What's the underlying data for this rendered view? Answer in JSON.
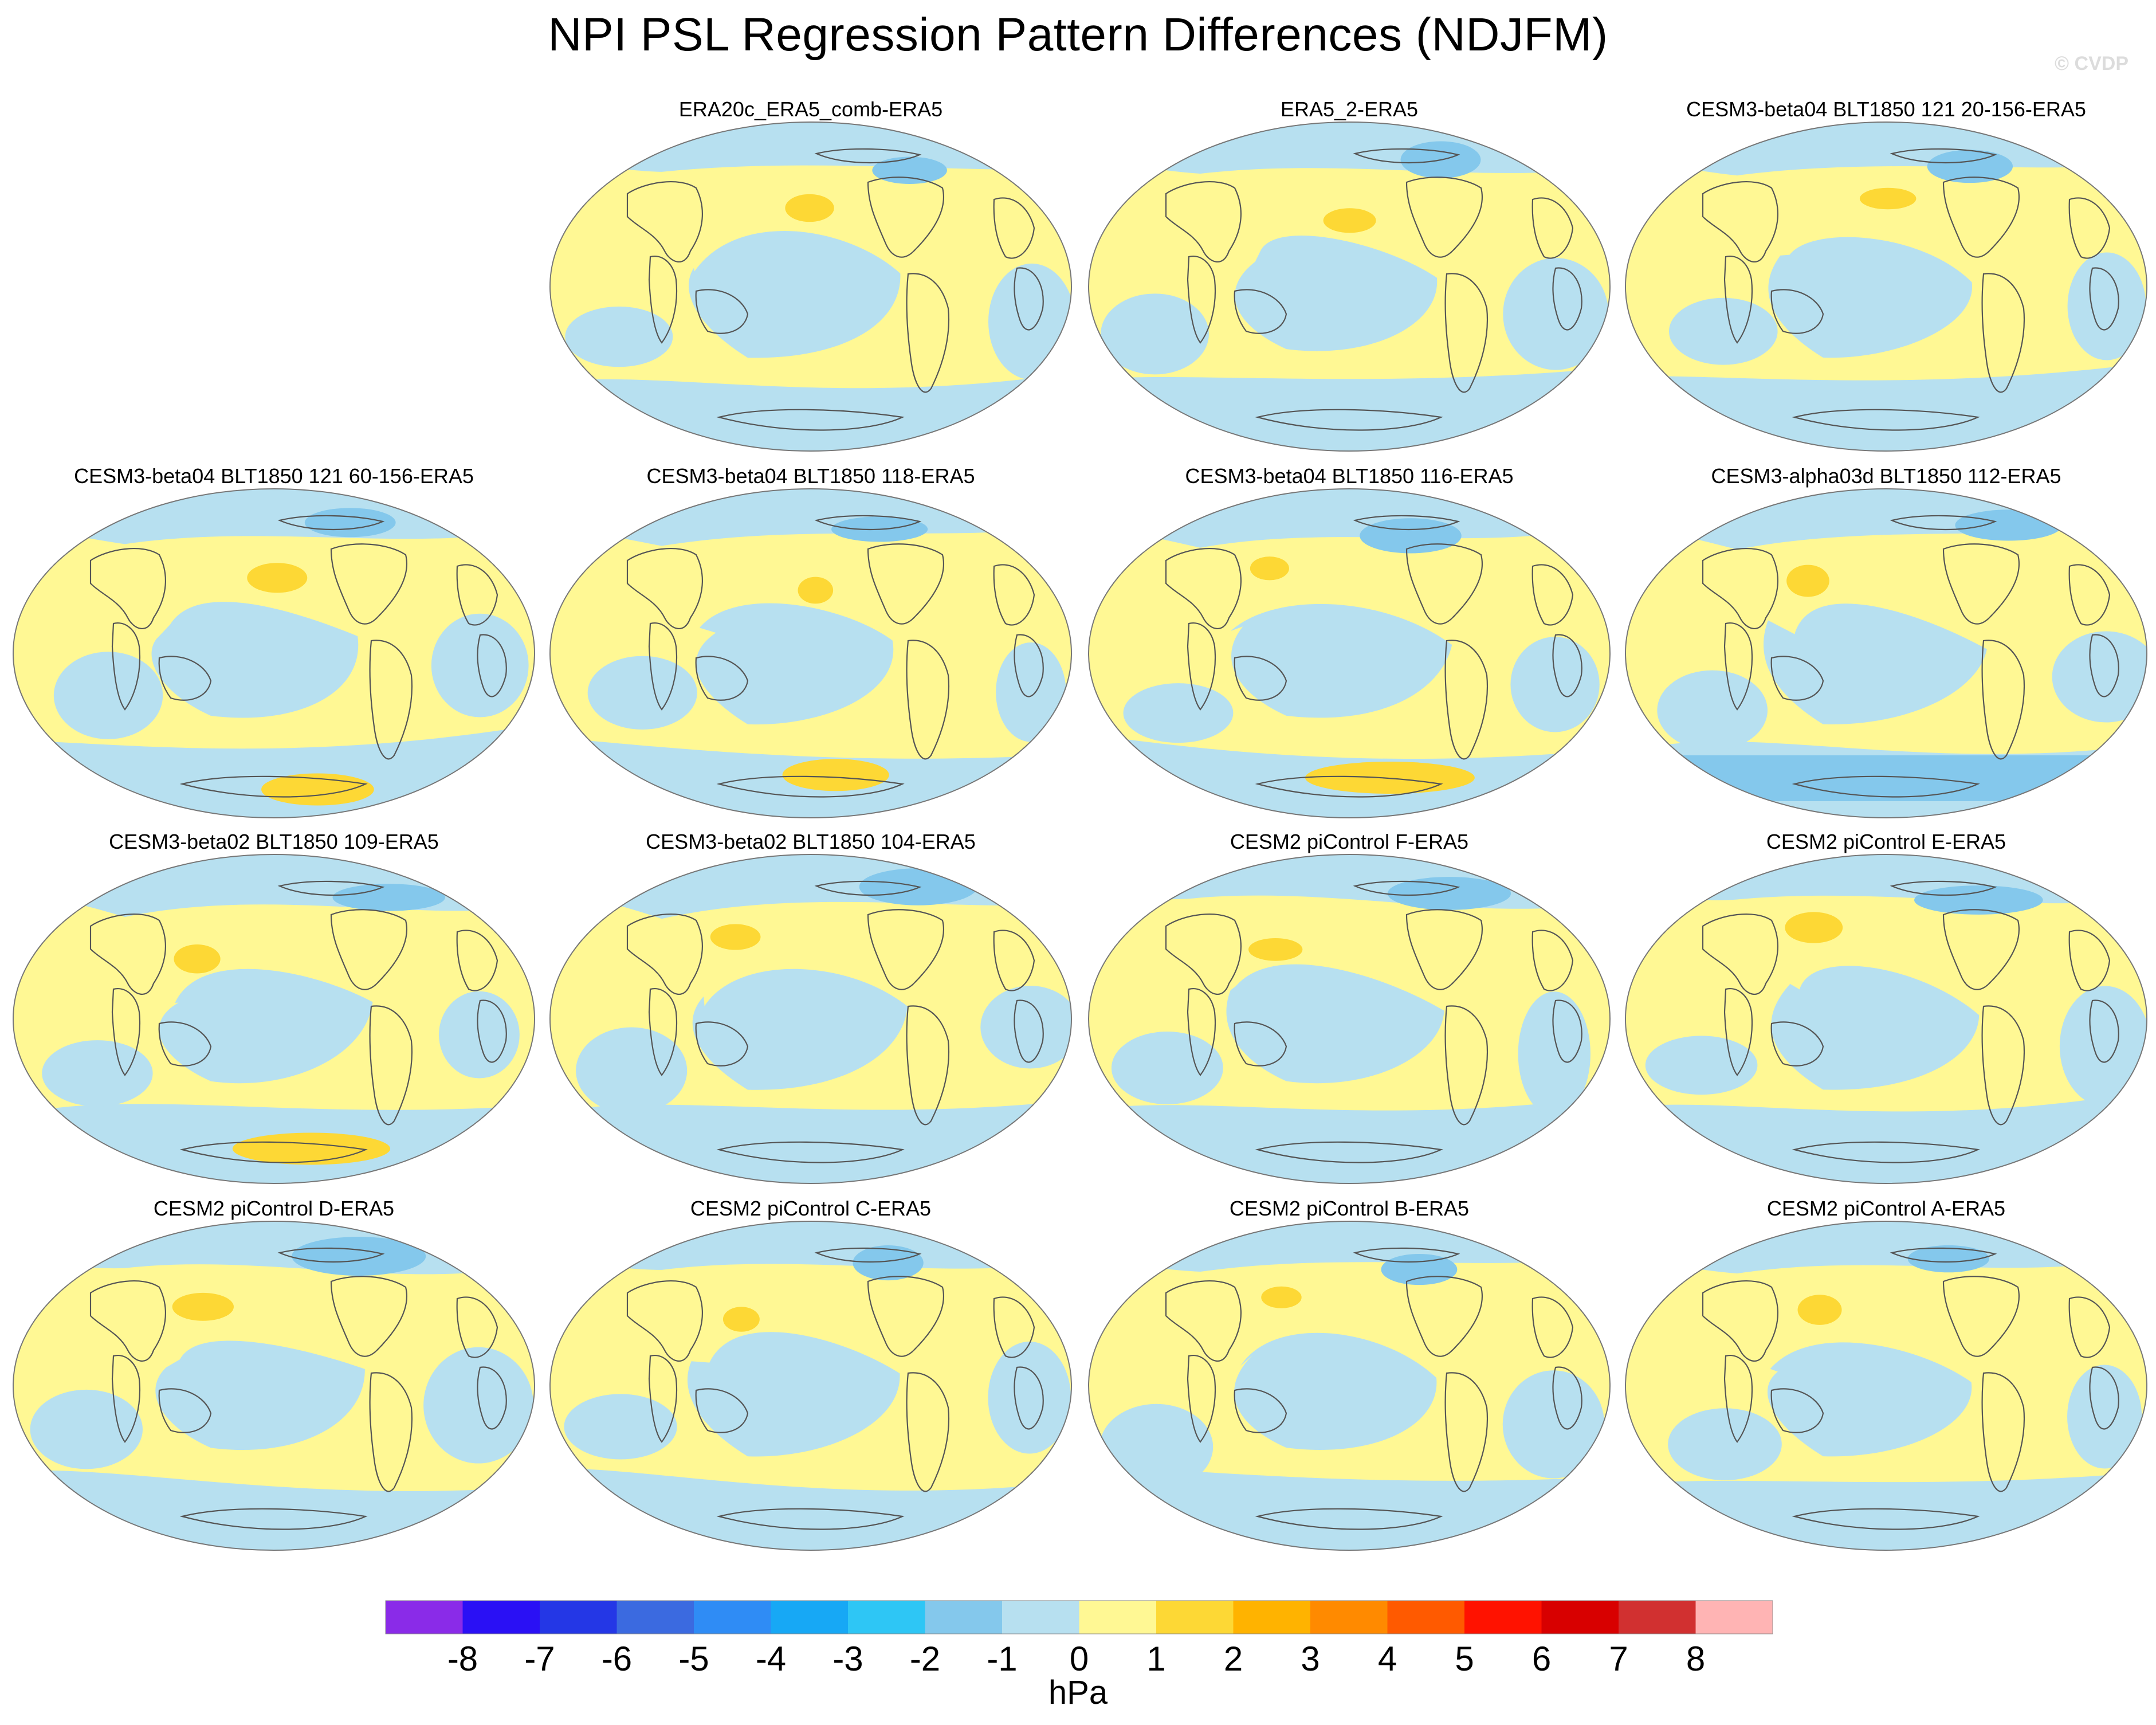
{
  "title": "NPI PSL Regression Pattern Differences (NDJFM)",
  "watermark": "© CVDP",
  "panels": [
    {
      "title": "ERA20c_ERA5_comb-ERA5"
    },
    {
      "title": "ERA5_2-ERA5"
    },
    {
      "title": "CESM3-beta04 BLT1850 121 20-156-ERA5"
    },
    {
      "title": "CESM3-beta04 BLT1850 121 60-156-ERA5"
    },
    {
      "title": "CESM3-beta04 BLT1850 118-ERA5"
    },
    {
      "title": "CESM3-beta04 BLT1850 116-ERA5"
    },
    {
      "title": "CESM3-alpha03d BLT1850 112-ERA5"
    },
    {
      "title": "CESM3-beta02 BLT1850 109-ERA5"
    },
    {
      "title": "CESM3-beta02 BLT1850 104-ERA5"
    },
    {
      "title": "CESM2 piControl F-ERA5"
    },
    {
      "title": "CESM2 piControl E-ERA5"
    },
    {
      "title": "CESM2 piControl D-ERA5"
    },
    {
      "title": "CESM2 piControl C-ERA5"
    },
    {
      "title": "CESM2 piControl B-ERA5"
    },
    {
      "title": "CESM2 piControl A-ERA5"
    }
  ],
  "colorbar": {
    "colors": [
      "#8a2be8",
      "#2a10f5",
      "#2437e6",
      "#3b6ae0",
      "#2f8cf5",
      "#17a8f5",
      "#2ec6f5",
      "#84c8ec",
      "#b7e0f0",
      "#fff894",
      "#fdd835",
      "#ffb300",
      "#ff8a00",
      "#ff5a00",
      "#ff1200",
      "#d80000",
      "#d13030",
      "#ffb4b4"
    ],
    "ticks": [
      "-8",
      "-7",
      "-6",
      "-5",
      "-4",
      "-3",
      "-2",
      "-1",
      "0",
      "1",
      "2",
      "3",
      "4",
      "5",
      "6",
      "7",
      "8"
    ],
    "units": "hPa"
  },
  "colors": {
    "ocean_neg": "#b7e0f0",
    "pos": "#fff894",
    "neg2": "#84c8ec",
    "pos2": "#fdd835",
    "coast": "#555555"
  }
}
